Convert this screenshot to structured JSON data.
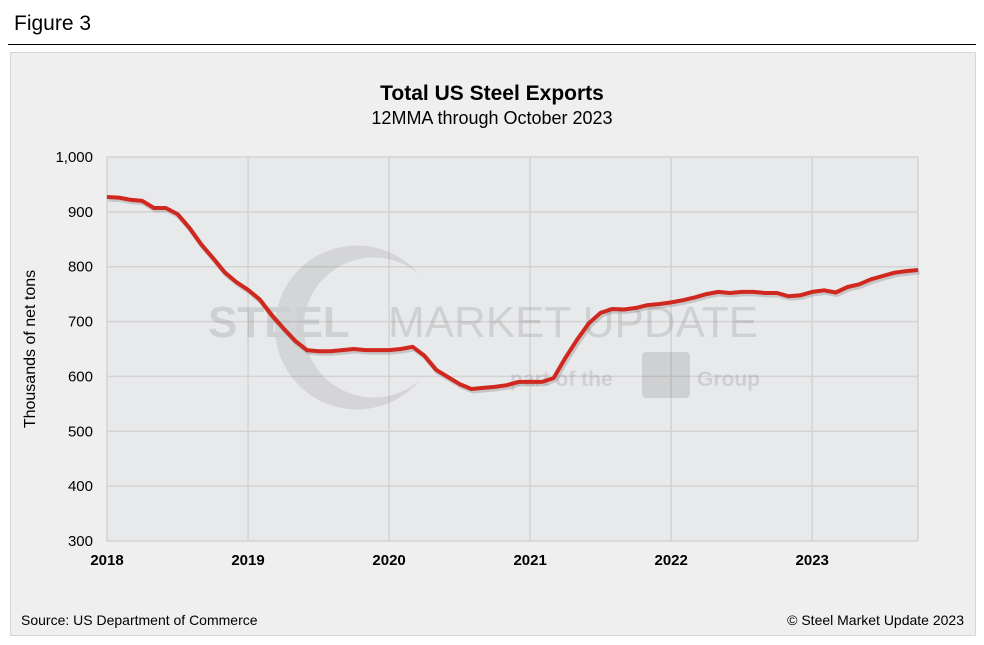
{
  "figure_label": "Figure 3",
  "source": "Source: US Department of Commerce",
  "copyright": "© Steel Market Update 2023",
  "watermark": "STEEL MARKET UPDATE part of the CRU Group",
  "chart_data": {
    "type": "line",
    "title": "Total US Steel Exports",
    "subtitle": "12MMA through October 2023",
    "ylabel": "Thousands of net tons",
    "xlabel": "",
    "ylim": [
      300,
      1000
    ],
    "yticks": [
      "300",
      "400",
      "500",
      "600",
      "700",
      "800",
      "900",
      "1,000"
    ],
    "xticks": [
      "2018",
      "2019",
      "2020",
      "2021",
      "2022",
      "2023"
    ],
    "x_start": "2018-01",
    "x_end": "2023-10",
    "grid": true,
    "line_color": "#d0281e",
    "values": [
      927,
      926,
      922,
      920,
      907,
      907,
      896,
      871,
      841,
      816,
      790,
      772,
      758,
      740,
      712,
      688,
      665,
      648,
      646,
      646,
      648,
      650,
      648,
      648,
      648,
      650,
      654,
      638,
      612,
      599,
      586,
      577,
      579,
      581,
      584,
      590,
      590,
      590,
      597,
      634,
      667,
      697,
      716,
      723,
      722,
      725,
      730,
      732,
      735,
      739,
      744,
      750,
      754,
      752,
      754,
      754,
      752,
      752,
      746,
      748,
      754,
      757,
      753,
      763,
      768,
      777,
      783,
      789,
      792,
      794
    ]
  }
}
